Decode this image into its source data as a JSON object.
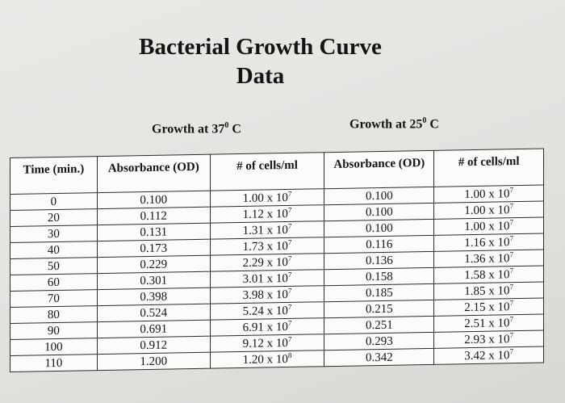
{
  "title_line1": "Bacterial Growth Curve",
  "title_line2": "Data",
  "conditions": {
    "c37": {
      "prefix": "Growth at 37",
      "sup": "0",
      "suffix": " C"
    },
    "c25": {
      "prefix": "Growth at 25",
      "sup": "0",
      "suffix": " C"
    }
  },
  "headers": [
    "Time (min.)",
    "Absorbance (OD)",
    "# of cells/ml",
    "Absorbance (OD)",
    "# of cells/ml"
  ],
  "rows": [
    {
      "time": "0",
      "od37": "0.100",
      "cells37": {
        "m": "1.00 x 10",
        "e": "7"
      },
      "od25": "0.100",
      "cells25": {
        "m": "1.00 x 10",
        "e": "7"
      }
    },
    {
      "time": "20",
      "od37": "0.112",
      "cells37": {
        "m": "1.12 x 10",
        "e": "7"
      },
      "od25": "0.100",
      "cells25": {
        "m": "1.00 x 10",
        "e": "7"
      }
    },
    {
      "time": "30",
      "od37": "0.131",
      "cells37": {
        "m": "1.31 x 10",
        "e": "7"
      },
      "od25": "0.100",
      "cells25": {
        "m": "1.00 x 10",
        "e": "7"
      }
    },
    {
      "time": "40",
      "od37": "0.173",
      "cells37": {
        "m": "1.73 x 10",
        "e": "7"
      },
      "od25": "0.116",
      "cells25": {
        "m": "1.16 x 10",
        "e": "7"
      }
    },
    {
      "time": "50",
      "od37": "0.229",
      "cells37": {
        "m": "2.29 x 10",
        "e": "7"
      },
      "od25": "0.136",
      "cells25": {
        "m": "1.36 x 10",
        "e": "7"
      }
    },
    {
      "time": "60",
      "od37": "0.301",
      "cells37": {
        "m": "3.01 x 10",
        "e": "7"
      },
      "od25": "0.158",
      "cells25": {
        "m": "1.58 x 10",
        "e": "7"
      }
    },
    {
      "time": "70",
      "od37": "0.398",
      "cells37": {
        "m": "3.98 x 10",
        "e": "7"
      },
      "od25": "0.185",
      "cells25": {
        "m": "1.85 x 10",
        "e": "7"
      }
    },
    {
      "time": "80",
      "od37": "0.524",
      "cells37": {
        "m": "5.24 x 10",
        "e": "7"
      },
      "od25": "0.215",
      "cells25": {
        "m": "2.15 x 10",
        "e": "7"
      }
    },
    {
      "time": "90",
      "od37": "0.691",
      "cells37": {
        "m": "6.91 x 10",
        "e": "7"
      },
      "od25": "0.251",
      "cells25": {
        "m": "2.51 x 10",
        "e": "7"
      }
    },
    {
      "time": "100",
      "od37": "0.912",
      "cells37": {
        "m": "9.12 x 10",
        "e": "7"
      },
      "od25": "0.293",
      "cells25": {
        "m": "2.93 x 10",
        "e": "7"
      }
    },
    {
      "time": "110",
      "od37": "1.200",
      "cells37": {
        "m": "1.20 x 10",
        "e": "8"
      },
      "od25": "0.342",
      "cells25": {
        "m": "3.42 x 10",
        "e": "7"
      }
    }
  ]
}
